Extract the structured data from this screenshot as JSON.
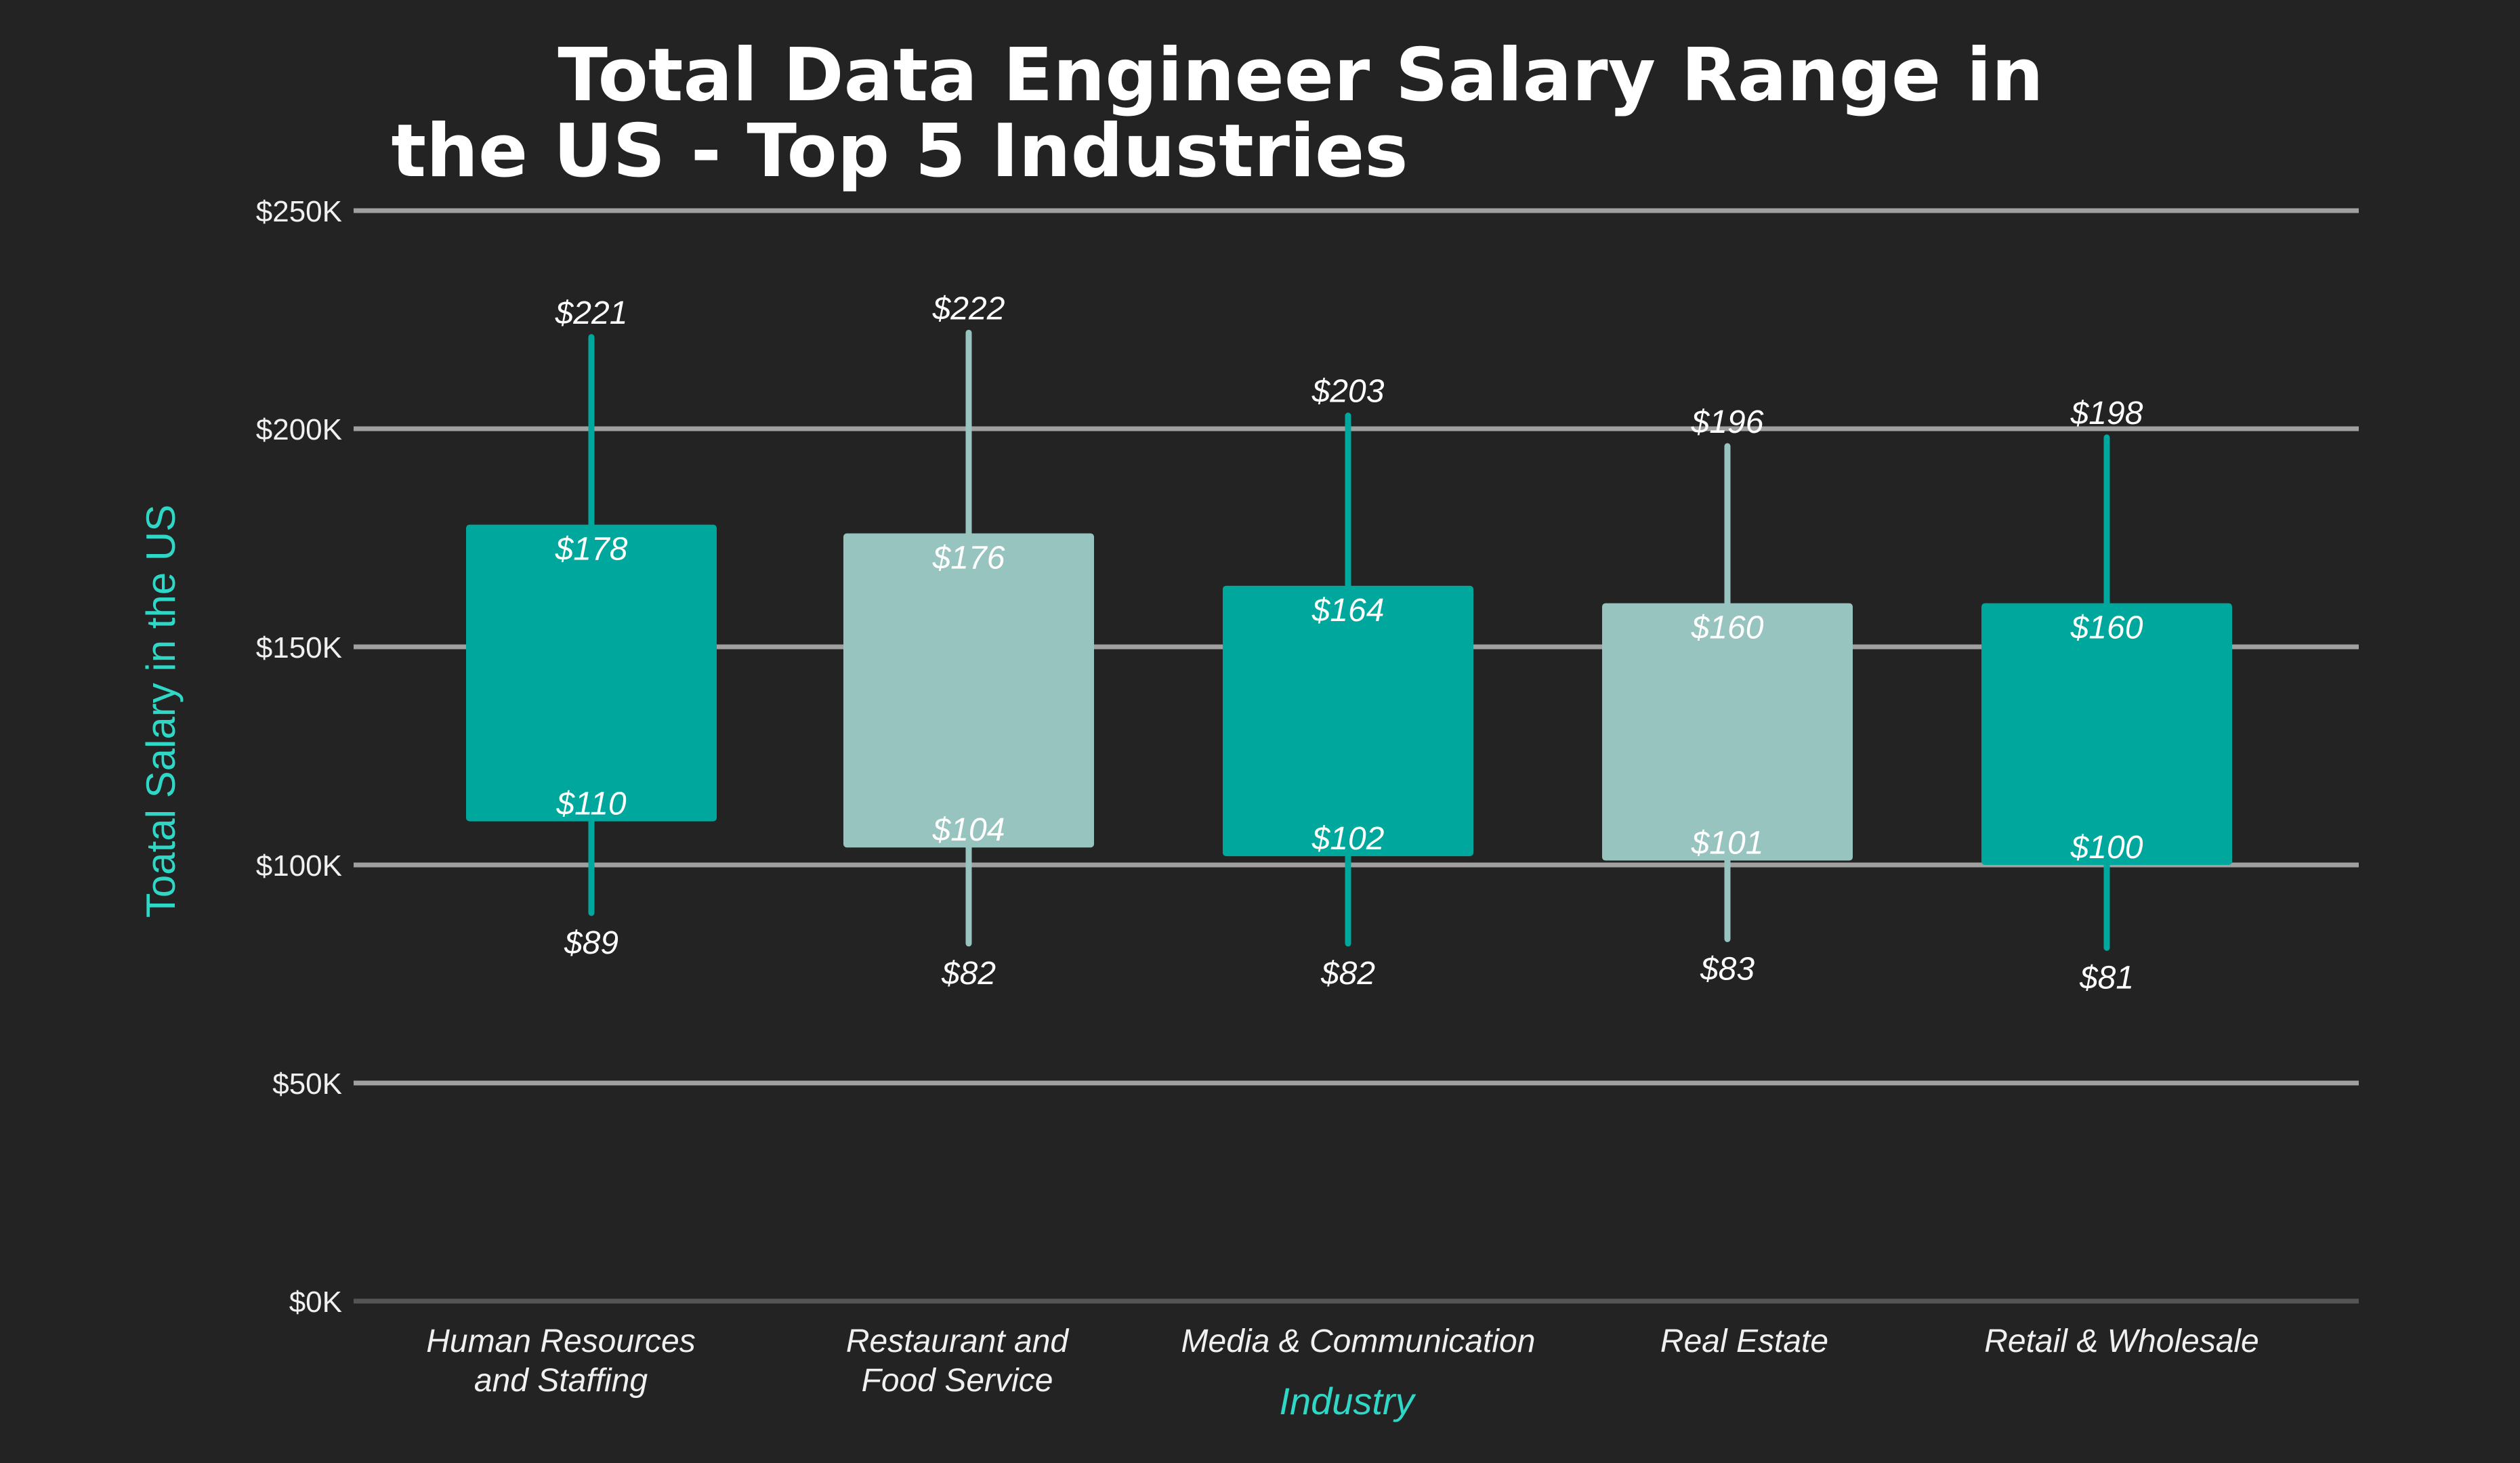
{
  "chart_data": {
    "type": "boxplot",
    "title_lines": [
      "Total Data Engineer Salary Range in",
      "the US -  Top 5 Industries"
    ],
    "xlabel": "Industry",
    "ylabel": "Toatal Salary in the US",
    "ylim": [
      0,
      250
    ],
    "yticks": [
      0,
      50,
      100,
      150,
      200,
      250
    ],
    "ytick_labels": [
      "$0K",
      "$50K",
      "$100K",
      "$150K",
      "$200K",
      "$250K"
    ],
    "grid": true,
    "categories": [
      [
        "Human Resources",
        "and Staffing"
      ],
      [
        "Restaurant and",
        "Food Service"
      ],
      [
        "Media & Communication"
      ],
      [
        "Real Estate"
      ],
      [
        "Retail & Wholesale"
      ]
    ],
    "boxes": [
      {
        "min": 89,
        "q1": 110,
        "q3": 178,
        "max": 221,
        "labels": [
          "$221",
          "$178",
          "$110",
          "$89"
        ],
        "color": "#00a79d"
      },
      {
        "min": 82,
        "q1": 104,
        "q3": 176,
        "max": 222,
        "labels": [
          "$222",
          "$176",
          "$104",
          "$82"
        ],
        "color": "#98c4c0"
      },
      {
        "min": 82,
        "q1": 102,
        "q3": 164,
        "max": 203,
        "labels": [
          "$203",
          "$164",
          "$102",
          "$82"
        ],
        "color": "#00a79d"
      },
      {
        "min": 83,
        "q1": 101,
        "q3": 160,
        "max": 196,
        "labels": [
          "$196",
          "$160",
          "$101",
          "$83"
        ],
        "color": "#98c4c0"
      },
      {
        "min": 81,
        "q1": 100,
        "q3": 160,
        "max": 198,
        "labels": [
          "$198",
          "$160",
          "$100",
          "$81"
        ],
        "color": "#00a79d"
      }
    ],
    "colors": {
      "background": "#232323",
      "grid": "#a0a0a0",
      "axis_title": "#2fd8c6"
    }
  }
}
